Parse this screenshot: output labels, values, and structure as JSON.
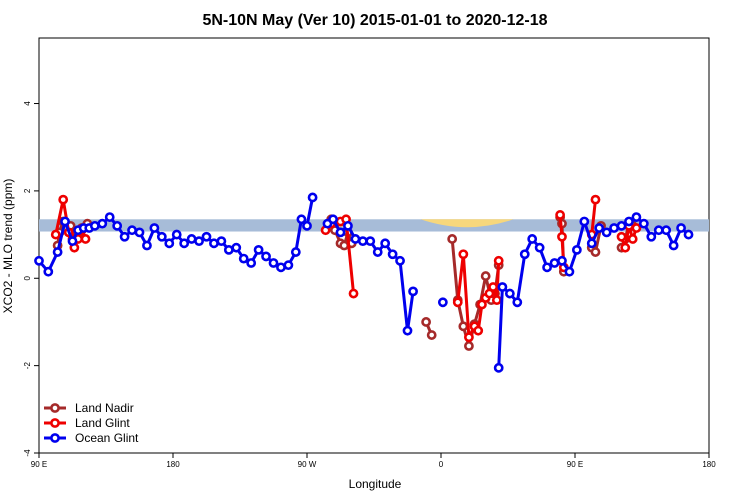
{
  "chart_data": {
    "type": "line",
    "title": "5N-10N May (Ver 10)   2015-01-01 to 2020-12-18",
    "xlabel": "Longitude",
    "ylabel": "XCO2 - MLO trend (ppm)",
    "xlim": [
      0,
      360
    ],
    "ylim": [
      -4,
      5.5
    ],
    "x_ticks": [
      {
        "value": 0,
        "label": "90 E"
      },
      {
        "value": 72,
        "label": "180"
      },
      {
        "value": 144,
        "label": "90 W"
      },
      {
        "value": 216,
        "label": "0"
      },
      {
        "value": 288,
        "label": "90 E"
      },
      {
        "value": 360,
        "label": "180"
      }
    ],
    "y_ticks": [
      -4,
      -2,
      0,
      2,
      4
    ],
    "band": {
      "ymin": 1.07,
      "ymax": 1.35,
      "color": "#a7bcd8"
    },
    "yellow_fills": [
      {
        "x": [
          157,
          160,
          163,
          166
        ],
        "ymin": 1.07,
        "ymax": 1.35
      },
      {
        "x": [
          205,
          230,
          255
        ],
        "ymin": 1.07,
        "ymax": 1.35
      }
    ],
    "legend": {
      "position": "bottom-left"
    },
    "series": [
      {
        "name": "Land Nadir",
        "color": "#a52a2a",
        "segments": [
          [
            [
              10,
              0.75
            ],
            [
              11,
              1.05
            ],
            [
              13,
              1.3
            ],
            [
              17,
              1.2
            ],
            [
              19,
              0.9
            ],
            [
              21,
              1.0
            ],
            [
              23,
              1.15
            ],
            [
              26,
              1.25
            ]
          ],
          [
            [
              157,
              1.35
            ],
            [
              159,
              1.1
            ],
            [
              162,
              0.8
            ],
            [
              164,
              0.75
            ],
            [
              166,
              1.05
            ],
            [
              168,
              0.8
            ]
          ],
          [
            [
              208,
              -1.0
            ],
            [
              211,
              -1.3
            ]
          ],
          [
            [
              222,
              0.9
            ],
            [
              225,
              -0.5
            ],
            [
              228,
              -1.1
            ],
            [
              231,
              -1.55
            ],
            [
              234,
              -1.05
            ],
            [
              237,
              -0.6
            ],
            [
              240,
              0.05
            ],
            [
              243,
              -0.5
            ],
            [
              245,
              -0.35
            ],
            [
              247,
              0.3
            ]
          ],
          [
            [
              280,
              1.4
            ],
            [
              281,
              1.25
            ],
            [
              282,
              0.15
            ]
          ],
          [
            [
              297,
              0.7
            ],
            [
              299,
              0.6
            ],
            [
              302,
              1.2
            ]
          ],
          [
            [
              313,
              0.7
            ],
            [
              315,
              0.9
            ],
            [
              317,
              1.25
            ],
            [
              319,
              1.2
            ]
          ]
        ]
      },
      {
        "name": "Land Glint",
        "color": "#ee0000",
        "segments": [
          [
            [
              9,
              1.0
            ],
            [
              13,
              1.8
            ],
            [
              16,
              1.05
            ],
            [
              18,
              0.9
            ],
            [
              19,
              0.7
            ],
            [
              21,
              0.9
            ],
            [
              23,
              1.1
            ],
            [
              25,
              0.9
            ]
          ],
          [
            [
              154,
              1.1
            ],
            [
              157,
              1.25
            ],
            [
              162,
              1.3
            ],
            [
              165,
              1.35
            ],
            [
              169,
              -0.35
            ]
          ],
          [
            [
              225,
              -0.55
            ],
            [
              228,
              0.55
            ],
            [
              231,
              -1.35
            ],
            [
              234,
              -1.1
            ],
            [
              236,
              -1.2
            ],
            [
              238,
              -0.6
            ],
            [
              240,
              -0.45
            ],
            [
              242,
              -0.35
            ],
            [
              244,
              -0.2
            ],
            [
              246,
              -0.5
            ],
            [
              247,
              0.4
            ]
          ],
          [
            [
              280,
              1.45
            ],
            [
              281,
              0.95
            ],
            [
              282,
              0.25
            ]
          ],
          [
            [
              297,
              1.0
            ],
            [
              299,
              1.8
            ]
          ],
          [
            [
              313,
              0.95
            ],
            [
              315,
              0.7
            ],
            [
              317,
              1.2
            ],
            [
              319,
              0.9
            ],
            [
              321,
              1.15
            ]
          ]
        ]
      },
      {
        "name": "Ocean Glint",
        "color": "#0000ee",
        "segments": [
          [
            [
              0,
              0.4
            ],
            [
              5,
              0.15
            ],
            [
              10,
              0.6
            ],
            [
              14,
              1.3
            ],
            [
              18,
              0.85
            ],
            [
              21,
              1.1
            ],
            [
              24,
              1.15
            ],
            [
              27,
              1.15
            ],
            [
              30,
              1.2
            ],
            [
              34,
              1.25
            ],
            [
              38,
              1.4
            ],
            [
              42,
              1.2
            ],
            [
              46,
              0.95
            ],
            [
              50,
              1.1
            ],
            [
              54,
              1.05
            ],
            [
              58,
              0.75
            ],
            [
              62,
              1.15
            ],
            [
              66,
              0.95
            ],
            [
              70,
              0.8
            ],
            [
              74,
              1.0
            ],
            [
              78,
              0.8
            ],
            [
              82,
              0.9
            ],
            [
              86,
              0.85
            ],
            [
              90,
              0.95
            ],
            [
              94,
              0.8
            ],
            [
              98,
              0.85
            ],
            [
              102,
              0.65
            ],
            [
              106,
              0.7
            ],
            [
              110,
              0.45
            ],
            [
              114,
              0.35
            ],
            [
              118,
              0.65
            ],
            [
              122,
              0.5
            ],
            [
              126,
              0.35
            ],
            [
              130,
              0.25
            ],
            [
              134,
              0.3
            ],
            [
              138,
              0.6
            ],
            [
              141,
              1.35
            ],
            [
              144,
              1.2
            ],
            [
              147,
              1.85
            ]
          ],
          [
            [
              155,
              1.25
            ],
            [
              158,
              1.35
            ],
            [
              162,
              1.05
            ],
            [
              166,
              1.2
            ],
            [
              170,
              0.9
            ],
            [
              174,
              0.85
            ],
            [
              178,
              0.85
            ],
            [
              182,
              0.6
            ],
            [
              186,
              0.8
            ],
            [
              190,
              0.55
            ],
            [
              194,
              0.4
            ],
            [
              198,
              -1.2
            ],
            [
              201,
              -0.3
            ]
          ],
          [
            [
              217,
              -0.55
            ]
          ],
          [
            [
              247,
              -2.05
            ],
            [
              249,
              -0.2
            ],
            [
              253,
              -0.35
            ],
            [
              257,
              -0.55
            ],
            [
              261,
              0.55
            ],
            [
              265,
              0.9
            ],
            [
              269,
              0.7
            ],
            [
              273,
              0.25
            ],
            [
              277,
              0.35
            ],
            [
              281,
              0.4
            ],
            [
              285,
              0.15
            ],
            [
              289,
              0.65
            ],
            [
              293,
              1.3
            ],
            [
              297,
              0.8
            ],
            [
              301,
              1.15
            ],
            [
              305,
              1.05
            ],
            [
              309,
              1.15
            ],
            [
              313,
              1.2
            ],
            [
              317,
              1.3
            ],
            [
              321,
              1.4
            ],
            [
              325,
              1.25
            ],
            [
              329,
              0.95
            ],
            [
              333,
              1.1
            ],
            [
              337,
              1.1
            ],
            [
              341,
              0.75
            ],
            [
              345,
              1.15
            ],
            [
              349,
              1.0
            ]
          ]
        ]
      }
    ]
  }
}
